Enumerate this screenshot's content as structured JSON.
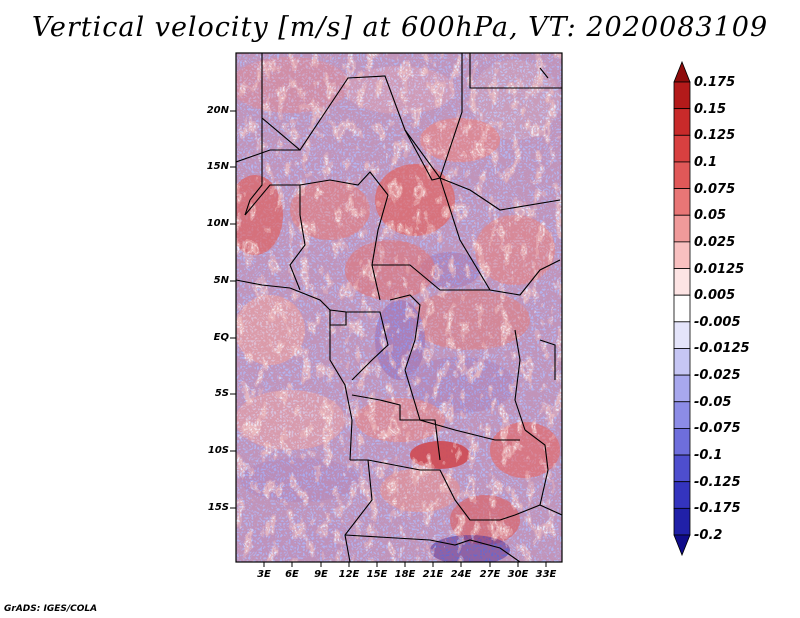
{
  "title": "Vertical velocity [m/s] at 600hPa, VT: 2020083109",
  "footer": "GrADS: IGES/COLA",
  "map": {
    "lat_labels": [
      "20N",
      "15N",
      "10N",
      "5N",
      "EQ",
      "5S",
      "10S",
      "15S"
    ],
    "lon_labels": [
      "3E",
      "6E",
      "9E",
      "12E",
      "15E",
      "18E",
      "21E",
      "24E",
      "27E",
      "30E",
      "33E"
    ]
  },
  "colorbar": {
    "labels": [
      "0.175",
      "0.15",
      "0.125",
      "0.1",
      "0.075",
      "0.05",
      "0.025",
      "0.0125",
      "0.005",
      "-0.005",
      "-0.0125",
      "-0.025",
      "-0.05",
      "-0.075",
      "-0.1",
      "-0.125",
      "-0.175",
      "-0.2"
    ],
    "colors": [
      "#8e0c0c",
      "#b31a1a",
      "#c82a2a",
      "#d84040",
      "#e05858",
      "#e87676",
      "#f09a9a",
      "#f8c0c0",
      "#fde4e4",
      "#ffffff",
      "#e4e4fa",
      "#c6c6f4",
      "#a8a8ee",
      "#8c8ce6",
      "#6e6edc",
      "#4e4ece",
      "#3434be",
      "#2020a8",
      "#100c8a"
    ]
  }
}
